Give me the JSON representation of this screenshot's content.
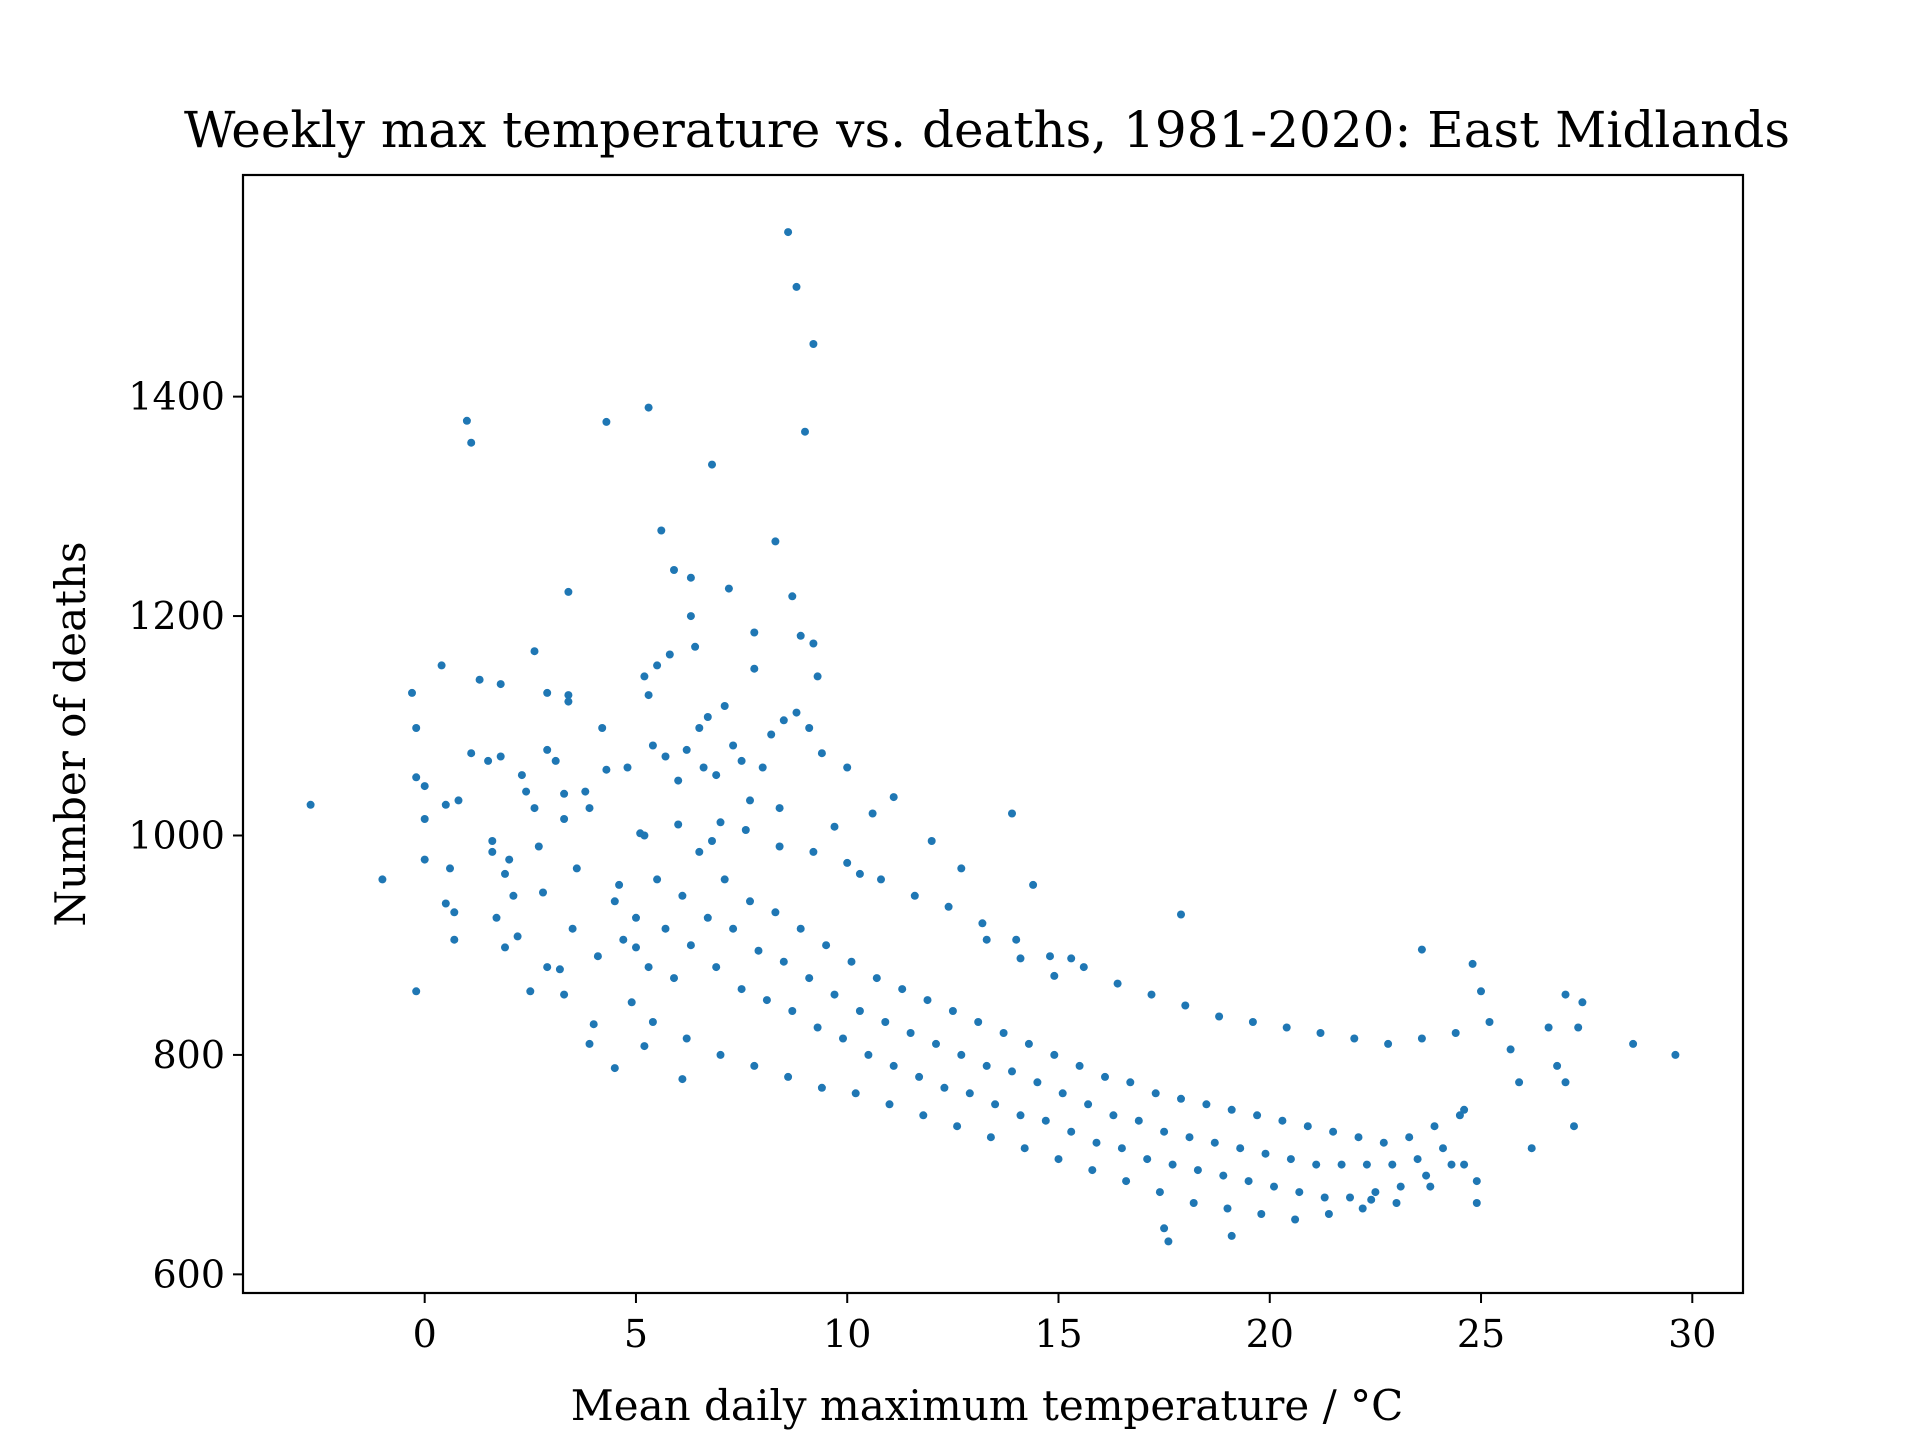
{
  "chart_data": {
    "type": "scatter",
    "title": "Weekly max temperature vs. deaths, 1981-2020: East Midlands",
    "xlabel": "Mean daily maximum temperature / °C",
    "ylabel": "Number of deaths",
    "xlim": [
      -4.3,
      31.2
    ],
    "ylim": [
      583,
      1602
    ],
    "xticks": [
      0,
      5,
      10,
      15,
      20,
      25,
      30
    ],
    "yticks": [
      600,
      800,
      1000,
      1200,
      1400
    ],
    "grid": false,
    "color": "#1f77b4",
    "points": [
      [
        -2.7,
        1028
      ],
      [
        -1.0,
        960
      ],
      [
        -0.3,
        1130
      ],
      [
        -0.2,
        1098
      ],
      [
        -0.2,
        1053
      ],
      [
        -0.2,
        858
      ],
      [
        0.0,
        1045
      ],
      [
        0.0,
        978
      ],
      [
        0.0,
        1015
      ],
      [
        0.4,
        1155
      ],
      [
        0.5,
        1028
      ],
      [
        0.5,
        938
      ],
      [
        0.6,
        970
      ],
      [
        0.7,
        930
      ],
      [
        0.7,
        905
      ],
      [
        0.8,
        1032
      ],
      [
        1.0,
        1378
      ],
      [
        1.1,
        1358
      ],
      [
        1.1,
        1075
      ],
      [
        1.3,
        1142
      ],
      [
        1.5,
        1068
      ],
      [
        1.6,
        995
      ],
      [
        1.6,
        985
      ],
      [
        1.7,
        925
      ],
      [
        1.8,
        1138
      ],
      [
        1.8,
        1072
      ],
      [
        1.9,
        965
      ],
      [
        1.9,
        898
      ],
      [
        2.0,
        978
      ],
      [
        2.1,
        945
      ],
      [
        2.2,
        908
      ],
      [
        2.3,
        1055
      ],
      [
        2.4,
        1040
      ],
      [
        2.5,
        858
      ],
      [
        2.6,
        1168
      ],
      [
        2.6,
        1025
      ],
      [
        2.7,
        990
      ],
      [
        2.8,
        948
      ],
      [
        2.9,
        1130
      ],
      [
        2.9,
        1078
      ],
      [
        2.9,
        880
      ],
      [
        3.1,
        1068
      ],
      [
        3.2,
        878
      ],
      [
        3.3,
        1038
      ],
      [
        3.3,
        1015
      ],
      [
        3.3,
        855
      ],
      [
        3.4,
        1222
      ],
      [
        3.4,
        1128
      ],
      [
        3.4,
        1122
      ],
      [
        3.5,
        915
      ],
      [
        3.6,
        970
      ],
      [
        3.8,
        1040
      ],
      [
        3.9,
        1025
      ],
      [
        3.9,
        810
      ],
      [
        4.0,
        828
      ],
      [
        4.1,
        890
      ],
      [
        4.2,
        1098
      ],
      [
        4.3,
        1377
      ],
      [
        4.3,
        1060
      ],
      [
        4.5,
        788
      ],
      [
        4.6,
        955
      ],
      [
        4.8,
        1062
      ],
      [
        4.9,
        848
      ],
      [
        5.0,
        898
      ],
      [
        5.1,
        1002
      ],
      [
        5.2,
        1145
      ],
      [
        5.2,
        808
      ],
      [
        5.3,
        1390
      ],
      [
        5.3,
        1128
      ],
      [
        5.4,
        1082
      ],
      [
        5.5,
        1155
      ],
      [
        5.6,
        1278
      ],
      [
        5.7,
        1072
      ],
      [
        5.8,
        1165
      ],
      [
        5.9,
        1242
      ],
      [
        6.0,
        1050
      ],
      [
        6.1,
        778
      ],
      [
        6.2,
        1078
      ],
      [
        6.3,
        1235
      ],
      [
        6.3,
        1200
      ],
      [
        6.4,
        1172
      ],
      [
        6.5,
        1098
      ],
      [
        6.6,
        1062
      ],
      [
        6.7,
        1108
      ],
      [
        6.8,
        1338
      ],
      [
        6.9,
        1055
      ],
      [
        7.0,
        1012
      ],
      [
        7.1,
        1118
      ],
      [
        7.2,
        1225
      ],
      [
        7.3,
        1082
      ],
      [
        7.5,
        1068
      ],
      [
        7.7,
        1032
      ],
      [
        7.8,
        1185
      ],
      [
        7.8,
        1152
      ],
      [
        8.0,
        1062
      ],
      [
        8.2,
        1092
      ],
      [
        8.3,
        1268
      ],
      [
        8.4,
        1025
      ],
      [
        8.5,
        1105
      ],
      [
        8.6,
        1550
      ],
      [
        8.7,
        1218
      ],
      [
        8.8,
        1500
      ],
      [
        8.8,
        1112
      ],
      [
        8.9,
        1182
      ],
      [
        9.0,
        1368
      ],
      [
        9.1,
        1098
      ],
      [
        9.2,
        1448
      ],
      [
        9.2,
        1175
      ],
      [
        9.3,
        1145
      ],
      [
        9.4,
        1075
      ],
      [
        9.7,
        1008
      ],
      [
        10.0,
        1062
      ],
      [
        10.3,
        965
      ],
      [
        10.6,
        1020
      ],
      [
        11.1,
        1035
      ],
      [
        12.0,
        995
      ],
      [
        12.7,
        970
      ],
      [
        13.3,
        905
      ],
      [
        13.9,
        1020
      ],
      [
        14.1,
        888
      ],
      [
        14.4,
        955
      ],
      [
        14.9,
        872
      ],
      [
        15.3,
        888
      ],
      [
        17.5,
        642
      ],
      [
        17.6,
        630
      ],
      [
        17.9,
        928
      ],
      [
        19.1,
        635
      ],
      [
        22.4,
        668
      ],
      [
        23.6,
        896
      ],
      [
        24.5,
        745
      ],
      [
        24.8,
        883
      ],
      [
        24.9,
        685
      ],
      [
        24.9,
        665
      ],
      [
        25.0,
        858
      ],
      [
        25.2,
        830
      ],
      [
        25.7,
        805
      ],
      [
        25.9,
        775
      ],
      [
        26.2,
        715
      ],
      [
        26.6,
        825
      ],
      [
        26.8,
        790
      ],
      [
        27.0,
        855
      ],
      [
        27.0,
        775
      ],
      [
        27.2,
        735
      ],
      [
        27.3,
        825
      ],
      [
        27.4,
        848
      ],
      [
        28.6,
        810
      ],
      [
        29.6,
        800
      ],
      [
        4.5,
        940
      ],
      [
        4.7,
        905
      ],
      [
        5.0,
        925
      ],
      [
        5.3,
        880
      ],
      [
        5.5,
        960
      ],
      [
        5.7,
        915
      ],
      [
        5.9,
        870
      ],
      [
        6.1,
        945
      ],
      [
        6.3,
        900
      ],
      [
        6.5,
        985
      ],
      [
        6.7,
        925
      ],
      [
        6.9,
        880
      ],
      [
        7.1,
        960
      ],
      [
        7.3,
        915
      ],
      [
        7.5,
        860
      ],
      [
        7.7,
        940
      ],
      [
        7.9,
        895
      ],
      [
        8.1,
        850
      ],
      [
        8.3,
        930
      ],
      [
        8.5,
        885
      ],
      [
        8.7,
        840
      ],
      [
        8.9,
        915
      ],
      [
        9.1,
        870
      ],
      [
        9.3,
        825
      ],
      [
        9.5,
        900
      ],
      [
        9.7,
        855
      ],
      [
        9.9,
        815
      ],
      [
        10.1,
        885
      ],
      [
        10.3,
        840
      ],
      [
        10.5,
        800
      ],
      [
        10.7,
        870
      ],
      [
        10.9,
        830
      ],
      [
        11.1,
        790
      ],
      [
        11.3,
        860
      ],
      [
        11.5,
        820
      ],
      [
        11.7,
        780
      ],
      [
        11.9,
        850
      ],
      [
        12.1,
        810
      ],
      [
        12.3,
        770
      ],
      [
        12.5,
        840
      ],
      [
        12.7,
        800
      ],
      [
        12.9,
        765
      ],
      [
        13.1,
        830
      ],
      [
        13.3,
        790
      ],
      [
        13.5,
        755
      ],
      [
        13.7,
        820
      ],
      [
        13.9,
        785
      ],
      [
        14.1,
        745
      ],
      [
        14.3,
        810
      ],
      [
        14.5,
        775
      ],
      [
        14.7,
        740
      ],
      [
        14.9,
        800
      ],
      [
        15.1,
        765
      ],
      [
        15.3,
        730
      ],
      [
        15.5,
        790
      ],
      [
        15.7,
        755
      ],
      [
        15.9,
        720
      ],
      [
        16.1,
        780
      ],
      [
        16.3,
        745
      ],
      [
        16.5,
        715
      ],
      [
        16.7,
        775
      ],
      [
        16.9,
        740
      ],
      [
        17.1,
        705
      ],
      [
        17.3,
        765
      ],
      [
        17.5,
        730
      ],
      [
        17.7,
        700
      ],
      [
        17.9,
        760
      ],
      [
        18.1,
        725
      ],
      [
        18.3,
        695
      ],
      [
        18.5,
        755
      ],
      [
        18.7,
        720
      ],
      [
        18.9,
        690
      ],
      [
        19.1,
        750
      ],
      [
        19.3,
        715
      ],
      [
        19.5,
        685
      ],
      [
        19.7,
        745
      ],
      [
        19.9,
        710
      ],
      [
        20.1,
        680
      ],
      [
        20.3,
        740
      ],
      [
        20.5,
        705
      ],
      [
        20.7,
        675
      ],
      [
        20.9,
        735
      ],
      [
        21.1,
        700
      ],
      [
        21.3,
        670
      ],
      [
        21.5,
        730
      ],
      [
        21.7,
        700
      ],
      [
        21.9,
        670
      ],
      [
        22.1,
        725
      ],
      [
        22.3,
        700
      ],
      [
        22.5,
        675
      ],
      [
        22.7,
        720
      ],
      [
        22.9,
        700
      ],
      [
        23.1,
        680
      ],
      [
        23.3,
        725
      ],
      [
        23.5,
        705
      ],
      [
        23.7,
        690
      ],
      [
        23.9,
        735
      ],
      [
        24.1,
        715
      ],
      [
        24.3,
        700
      ],
      [
        24.6,
        750
      ],
      [
        5.2,
        1000
      ],
      [
        6.0,
        1010
      ],
      [
        6.8,
        995
      ],
      [
        7.6,
        1005
      ],
      [
        8.4,
        990
      ],
      [
        9.2,
        985
      ],
      [
        10.0,
        975
      ],
      [
        10.8,
        960
      ],
      [
        11.6,
        945
      ],
      [
        12.4,
        935
      ],
      [
        13.2,
        920
      ],
      [
        14.0,
        905
      ],
      [
        14.8,
        890
      ],
      [
        15.6,
        880
      ],
      [
        16.4,
        865
      ],
      [
        17.2,
        855
      ],
      [
        18.0,
        845
      ],
      [
        18.8,
        835
      ],
      [
        19.6,
        830
      ],
      [
        20.4,
        825
      ],
      [
        21.2,
        820
      ],
      [
        22.0,
        815
      ],
      [
        22.8,
        810
      ],
      [
        23.6,
        815
      ],
      [
        24.4,
        820
      ],
      [
        5.4,
        830
      ],
      [
        6.2,
        815
      ],
      [
        7.0,
        800
      ],
      [
        7.8,
        790
      ],
      [
        8.6,
        780
      ],
      [
        9.4,
        770
      ],
      [
        10.2,
        765
      ],
      [
        11.0,
        755
      ],
      [
        11.8,
        745
      ],
      [
        12.6,
        735
      ],
      [
        13.4,
        725
      ],
      [
        14.2,
        715
      ],
      [
        15.0,
        705
      ],
      [
        15.8,
        695
      ],
      [
        16.6,
        685
      ],
      [
        17.4,
        675
      ],
      [
        18.2,
        665
      ],
      [
        19.0,
        660
      ],
      [
        19.8,
        655
      ],
      [
        20.6,
        650
      ],
      [
        21.4,
        655
      ],
      [
        22.2,
        660
      ],
      [
        23.0,
        665
      ],
      [
        23.8,
        680
      ],
      [
        24.6,
        700
      ]
    ]
  }
}
